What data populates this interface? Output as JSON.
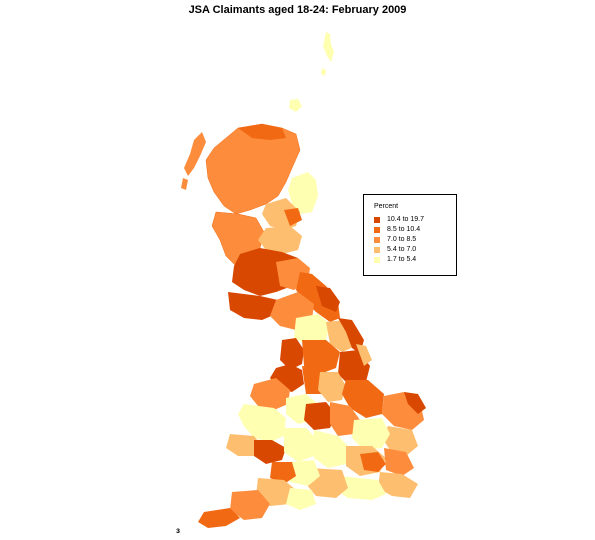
{
  "title": "JSA Claimants aged 18-24: February 2009",
  "legend": {
    "title": "Percent",
    "items": [
      {
        "label": "10.4 to 19.7",
        "color": "#d94801"
      },
      {
        "label": "8.5 to 10.4",
        "color": "#f16913"
      },
      {
        "label": "7.0 to  8.5",
        "color": "#fd8d3c"
      },
      {
        "label": "5.4 to  7.0",
        "color": "#fdbe6f"
      },
      {
        "label": "1.7 to  5.4",
        "color": "#ffffb2"
      }
    ]
  },
  "corner_mark": "з"
}
